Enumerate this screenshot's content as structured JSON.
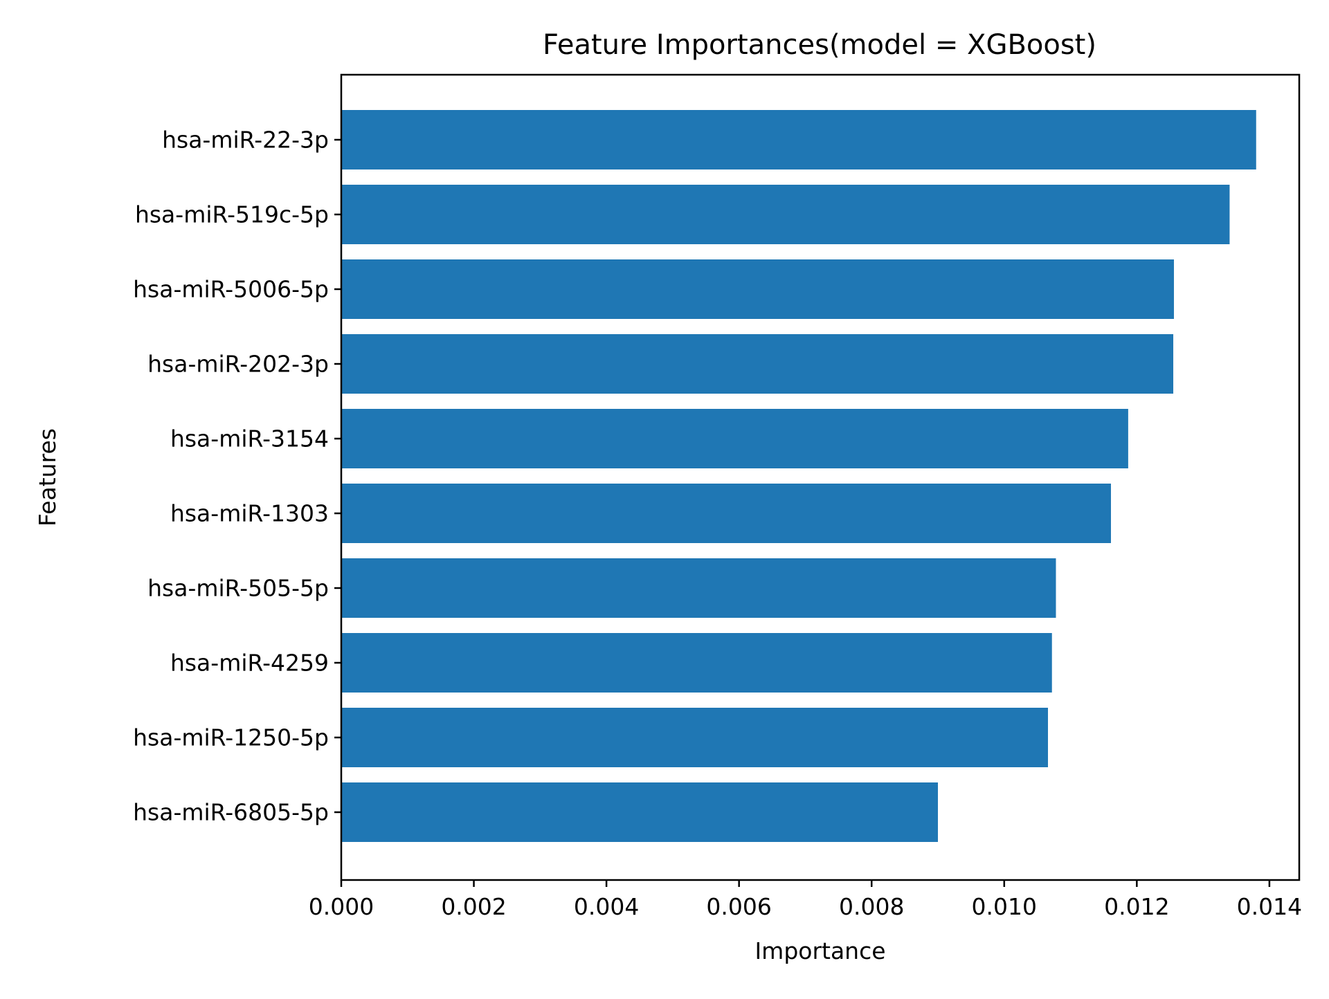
{
  "chart_data": {
    "type": "bar",
    "orientation": "horizontal",
    "title": "Feature Importances(model = XGBoost)",
    "xlabel": "Importance",
    "ylabel": "Features",
    "categories": [
      "hsa-miR-22-3p",
      "hsa-miR-519c-5p",
      "hsa-miR-5006-5p",
      "hsa-miR-202-3p",
      "hsa-miR-3154",
      "hsa-miR-1303",
      "hsa-miR-505-5p",
      "hsa-miR-4259",
      "hsa-miR-1250-5p",
      "hsa-miR-6805-5p"
    ],
    "values": [
      0.0138,
      0.0134,
      0.01256,
      0.01255,
      0.01187,
      0.01161,
      0.01078,
      0.01072,
      0.01066,
      0.009
    ],
    "xlim": [
      0,
      0.01445
    ],
    "xticks": [
      "0.000",
      "0.002",
      "0.004",
      "0.006",
      "0.008",
      "0.010",
      "0.012",
      "0.014"
    ],
    "xtick_values": [
      0,
      0.002,
      0.004,
      0.006,
      0.008,
      0.01,
      0.012,
      0.014
    ],
    "grid": false,
    "bar_color": "#1f77b4"
  }
}
